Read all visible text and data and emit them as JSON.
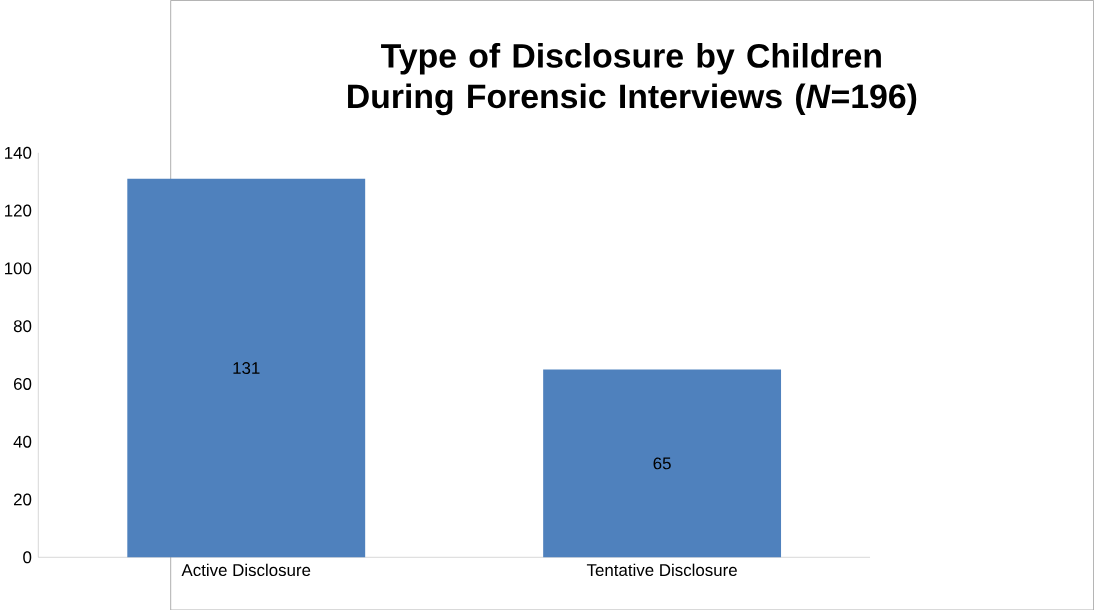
{
  "chart_data": {
    "type": "bar",
    "title": "Type of Disclosure by Children During Forensic Interviews (*N*=196)",
    "categories": [
      "Active Disclosure",
      "Tentative Disclosure"
    ],
    "values": [
      131,
      65
    ],
    "color": "#4f81bd",
    "data_labels": true,
    "ylim": [
      0,
      140
    ],
    "yticks": [
      0,
      20,
      40,
      60,
      80,
      100,
      120,
      140
    ],
    "grid": false
  }
}
